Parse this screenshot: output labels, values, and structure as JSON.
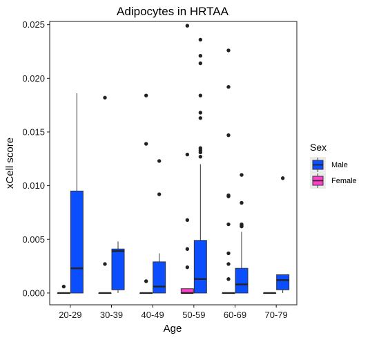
{
  "chart_data": {
    "type": "boxplot",
    "title": "Adipocytes in HRTAA",
    "xlabel": "Age",
    "ylabel": "xCell score",
    "categories": [
      "20-29",
      "30-39",
      "40-49",
      "50-59",
      "60-69",
      "70-79"
    ],
    "ylim": [
      -0.0011,
      0.0253
    ],
    "yticks": [
      0.0,
      0.005,
      0.01,
      0.015,
      0.02,
      0.025
    ],
    "ytick_labels": [
      "0.000",
      "0.005",
      "0.010",
      "0.015",
      "0.020",
      "0.025"
    ],
    "grid": false,
    "legend": {
      "title": "Sex",
      "position": "right",
      "entries": [
        {
          "name": "Male",
          "color": "#0a4eff"
        },
        {
          "name": "Female",
          "color": "#ff3fc8"
        }
      ]
    },
    "series": [
      {
        "name": "Female",
        "color": "#ff3fc8",
        "boxes": [
          {
            "category": "20-29",
            "min": 0.0,
            "q1": 0.0,
            "median": 0.0,
            "q3": 0.0,
            "max": 0.0,
            "outliers": [
              0.0006
            ]
          },
          {
            "category": "30-39",
            "min": 0.0,
            "q1": 0.0,
            "median": 0.0,
            "q3": 0.0,
            "max": 0.0,
            "outliers": [
              0.0027,
              0.0182
            ]
          },
          {
            "category": "40-49",
            "min": 0.0,
            "q1": 0.0,
            "median": 0.0,
            "q3": 0.0,
            "max": 0.0,
            "outliers": [
              0.0011,
              0.0139,
              0.0184
            ]
          },
          {
            "category": "50-59",
            "min": 0.0,
            "q1": 0.0,
            "median": 0.0,
            "q3": 0.0004,
            "max": 0.0004,
            "outliers": [
              0.0024,
              0.0041,
              0.0068,
              0.0129,
              0.0249
            ]
          },
          {
            "category": "60-69",
            "min": 0.0,
            "q1": 0.0,
            "median": 0.0,
            "q3": 0.0,
            "max": 0.0,
            "outliers": [
              0.0013,
              0.0027,
              0.0037,
              0.0064,
              0.009,
              0.0091,
              0.0147,
              0.0192,
              0.0226
            ]
          },
          {
            "category": "70-79",
            "min": 0.0,
            "q1": 0.0,
            "median": 0.0,
            "q3": 0.0,
            "max": 0.0,
            "outliers": []
          }
        ]
      },
      {
        "name": "Male",
        "color": "#0a4eff",
        "boxes": [
          {
            "category": "20-29",
            "min": 0.0,
            "q1": 0.0,
            "median": 0.0023,
            "q3": 0.0095,
            "max": 0.0186,
            "outliers": []
          },
          {
            "category": "30-39",
            "min": 0.0,
            "q1": 0.0003,
            "median": 0.0039,
            "q3": 0.0041,
            "max": 0.0048,
            "outliers": []
          },
          {
            "category": "40-49",
            "min": 0.0,
            "q1": 0.0,
            "median": 0.0006,
            "q3": 0.0029,
            "max": 0.0037,
            "outliers": [
              0.0092,
              0.0123
            ]
          },
          {
            "category": "50-59",
            "min": 0.0,
            "q1": 0.0,
            "median": 0.0013,
            "q3": 0.0049,
            "max": 0.012,
            "outliers": [
              0.0127,
              0.0131,
              0.0133,
              0.0135,
              0.0163,
              0.0168,
              0.0184,
              0.0214,
              0.0221,
              0.0236
            ]
          },
          {
            "category": "60-69",
            "min": 0.0,
            "q1": 0.0,
            "median": 0.0008,
            "q3": 0.0023,
            "max": 0.0057,
            "outliers": [
              0.0062,
              0.0063,
              0.0064,
              0.0084,
              0.011
            ]
          },
          {
            "category": "70-79",
            "min": 0.0,
            "q1": 0.0003,
            "median": 0.0012,
            "q3": 0.0017,
            "max": 0.0017,
            "outliers": [
              0.0107
            ]
          }
        ]
      }
    ]
  }
}
